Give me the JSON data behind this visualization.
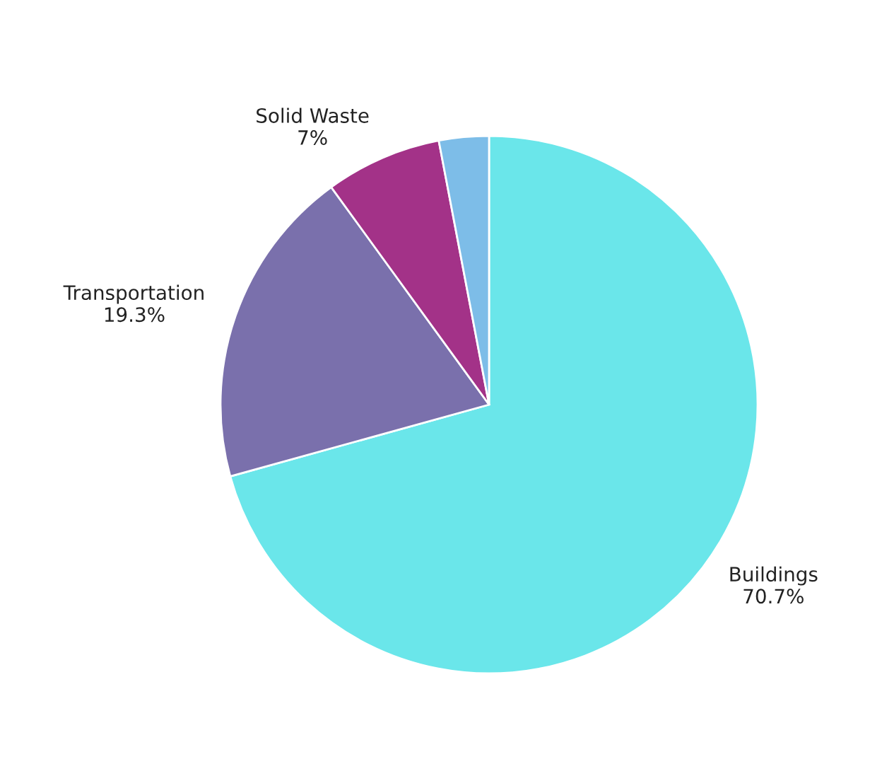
{
  "chart_data": {
    "type": "pie",
    "categories": [
      "Buildings",
      "Transportation",
      "Solid Waste",
      null
    ],
    "values": [
      70.7,
      19.3,
      7,
      3
    ],
    "value_labels": [
      "70.7%",
      "19.3%",
      "7%",
      null
    ],
    "colors": [
      "#6ae6ea",
      "#7a70ac",
      "#a33288",
      "#7dbde8"
    ],
    "legend": false
  }
}
